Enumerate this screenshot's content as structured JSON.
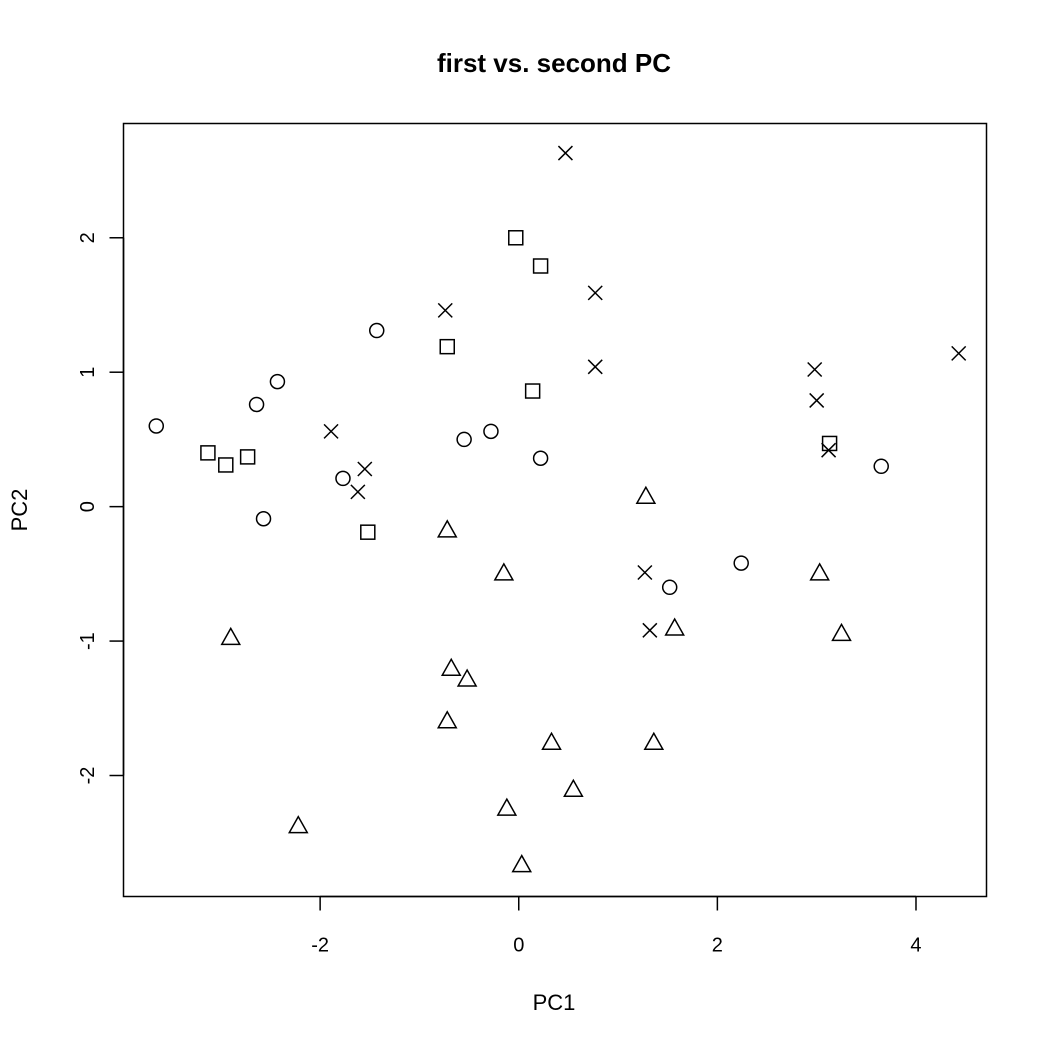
{
  "chart_data": {
    "type": "scatter",
    "title": "first vs. second PC",
    "xlabel": "PC1",
    "ylabel": "PC2",
    "xlim": [
      -3.98,
      4.71
    ],
    "ylim": [
      -2.9,
      2.85
    ],
    "xticks": [
      -2,
      0,
      2,
      4
    ],
    "yticks": [
      -2,
      -1,
      0,
      1,
      2
    ],
    "xtick_labels": [
      "-2",
      "0",
      "2",
      "4"
    ],
    "ytick_labels": [
      "-2",
      "-1",
      "0",
      "1",
      "2"
    ],
    "grid": false,
    "legend": "none",
    "series": [
      {
        "marker": "circle",
        "points": [
          [
            -3.65,
            0.6
          ],
          [
            -2.64,
            0.76
          ],
          [
            -2.43,
            0.93
          ],
          [
            -2.57,
            -0.09
          ],
          [
            -1.43,
            1.31
          ],
          [
            -1.77,
            0.21
          ],
          [
            -0.55,
            0.5
          ],
          [
            -0.28,
            0.56
          ],
          [
            0.22,
            0.36
          ],
          [
            1.52,
            -0.6
          ],
          [
            2.24,
            -0.42
          ],
          [
            3.65,
            0.3
          ]
        ]
      },
      {
        "marker": "square",
        "points": [
          [
            -3.13,
            0.4
          ],
          [
            -2.95,
            0.31
          ],
          [
            -2.73,
            0.37
          ],
          [
            -1.52,
            -0.19
          ],
          [
            -0.72,
            1.19
          ],
          [
            -0.03,
            2.0
          ],
          [
            0.22,
            1.79
          ],
          [
            0.14,
            0.86
          ],
          [
            3.13,
            0.47
          ]
        ]
      },
      {
        "marker": "cross",
        "points": [
          [
            0.47,
            2.63
          ],
          [
            0.77,
            1.59
          ],
          [
            0.77,
            1.04
          ],
          [
            -0.74,
            1.46
          ],
          [
            -1.89,
            0.56
          ],
          [
            -1.55,
            0.28
          ],
          [
            -1.62,
            0.11
          ],
          [
            2.98,
            1.02
          ],
          [
            3.0,
            0.79
          ],
          [
            3.12,
            0.42
          ],
          [
            4.43,
            1.14
          ],
          [
            1.27,
            -0.49
          ],
          [
            1.32,
            -0.92
          ]
        ]
      },
      {
        "marker": "triangle",
        "points": [
          [
            1.28,
            0.07
          ],
          [
            -0.72,
            -0.18
          ],
          [
            -0.15,
            -0.5
          ],
          [
            3.03,
            -0.5
          ],
          [
            -2.9,
            -0.98
          ],
          [
            1.57,
            -0.91
          ],
          [
            3.25,
            -0.95
          ],
          [
            -0.68,
            -1.21
          ],
          [
            -0.52,
            -1.29
          ],
          [
            -0.72,
            -1.6
          ],
          [
            0.33,
            -1.76
          ],
          [
            1.36,
            -1.76
          ],
          [
            0.55,
            -2.11
          ],
          [
            -0.12,
            -2.25
          ],
          [
            -2.22,
            -2.38
          ],
          [
            0.03,
            -2.67
          ]
        ]
      }
    ]
  }
}
